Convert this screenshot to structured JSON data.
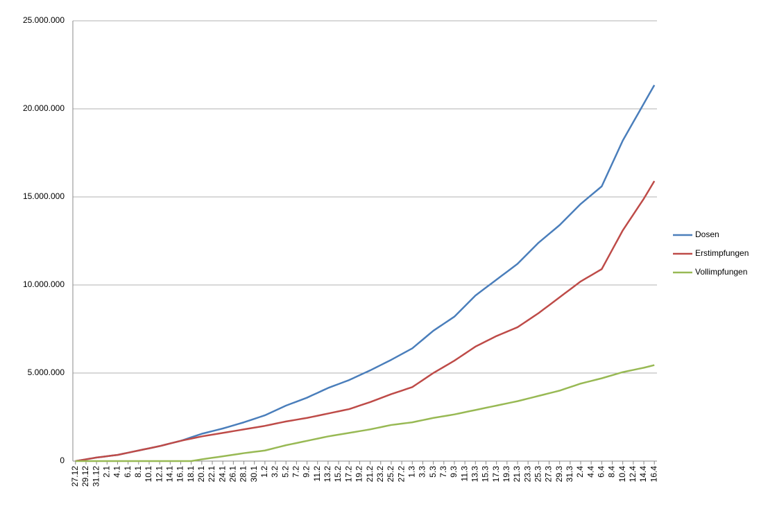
{
  "chart_data": {
    "type": "line",
    "categories": [
      "27.12",
      null,
      "29.12",
      null,
      "31.12",
      null,
      "2.1",
      null,
      "4.1",
      null,
      "6.1",
      null,
      "8.1",
      null,
      "10.1",
      null,
      "12.1",
      null,
      "14.1",
      null,
      "16.1",
      null,
      "18.1",
      null,
      "20.1",
      null,
      "22.1",
      null,
      "24.1",
      null,
      "26.1",
      null,
      "28.1",
      null,
      "30.1",
      null,
      "1.2",
      null,
      "3.2",
      null,
      "5.2",
      null,
      "7.2",
      null,
      "9.2",
      null,
      "11.2",
      null,
      "13.2",
      null,
      "15.2",
      null,
      "17.2",
      null,
      "19.2",
      null,
      "21.2",
      null,
      "23.2",
      null,
      "25.2",
      null,
      "27.2",
      null,
      "1.3",
      null,
      "3.3",
      null,
      "5.3",
      null,
      "7.3",
      null,
      "9.3",
      null,
      "11.3",
      null,
      "13.3",
      null,
      "15.3",
      null,
      "17.3",
      null,
      "19.3",
      null,
      "21.3",
      null,
      "23.3",
      null,
      "25.3",
      null,
      "27.3",
      null,
      "29.3",
      null,
      "31.3",
      null,
      "2.4",
      null,
      "4.4",
      null,
      "6.4",
      null,
      "8.4",
      null,
      "10.4",
      null,
      "12.4",
      null,
      "14.4",
      null,
      "16.4"
    ],
    "series": [
      {
        "name": "Dosen",
        "color": "#4a7ebb",
        "values": [
          0,
          50000,
          100000,
          150000,
          200000,
          238000,
          275000,
          313000,
          350000,
          413000,
          475000,
          538000,
          600000,
          663000,
          725000,
          788000,
          850000,
          925000,
          1000000,
          1075000,
          1150000,
          1250000,
          1350000,
          1450000,
          1550000,
          1625000,
          1700000,
          1775000,
          1850000,
          1938000,
          2025000,
          2113000,
          2200000,
          2300000,
          2400000,
          2500000,
          2600000,
          2738000,
          2875000,
          3013000,
          3150000,
          3263000,
          3375000,
          3488000,
          3600000,
          3738000,
          3875000,
          4013000,
          4150000,
          4263000,
          4375000,
          4488000,
          4600000,
          4738000,
          4875000,
          5013000,
          5150000,
          5300000,
          5450000,
          5600000,
          5750000,
          5913000,
          6075000,
          6238000,
          6400000,
          6650000,
          6900000,
          7150000,
          7400000,
          7600000,
          7800000,
          8000000,
          8200000,
          8500000,
          8800000,
          9100000,
          9400000,
          9625000,
          9850000,
          10075000,
          10300000,
          10525000,
          10750000,
          10975000,
          11200000,
          11500000,
          11800000,
          12100000,
          12400000,
          12650000,
          12900000,
          13150000,
          13400000,
          13700000,
          14000000,
          14300000,
          14600000,
          14850000,
          15100000,
          15350000,
          15600000,
          16250000,
          16900000,
          17550000,
          18200000,
          18725000,
          19250000,
          19775000,
          20300000,
          20825000,
          21350000
        ]
      },
      {
        "name": "Erstimpfungen",
        "color": "#be4b48",
        "values": [
          0,
          50000,
          100000,
          150000,
          200000,
          238000,
          275000,
          313000,
          350000,
          413000,
          475000,
          538000,
          600000,
          663000,
          725000,
          788000,
          850000,
          925000,
          1000000,
          1075000,
          1150000,
          1213000,
          1275000,
          1338000,
          1400000,
          1450000,
          1500000,
          1550000,
          1600000,
          1650000,
          1700000,
          1750000,
          1800000,
          1850000,
          1900000,
          1950000,
          2000000,
          2063000,
          2125000,
          2188000,
          2250000,
          2300000,
          2350000,
          2400000,
          2450000,
          2513000,
          2575000,
          2638000,
          2700000,
          2763000,
          2825000,
          2888000,
          2950000,
          3050000,
          3150000,
          3250000,
          3350000,
          3463000,
          3575000,
          3688000,
          3800000,
          3900000,
          4000000,
          4100000,
          4200000,
          4400000,
          4600000,
          4800000,
          5000000,
          5175000,
          5350000,
          5525000,
          5700000,
          5900000,
          6100000,
          6300000,
          6500000,
          6650000,
          6800000,
          6950000,
          7100000,
          7225000,
          7350000,
          7475000,
          7600000,
          7800000,
          8000000,
          8200000,
          8400000,
          8625000,
          8850000,
          9075000,
          9300000,
          9525000,
          9750000,
          9975000,
          10200000,
          10375000,
          10550000,
          10725000,
          10900000,
          11450000,
          12000000,
          12550000,
          13100000,
          13550000,
          14000000,
          14450000,
          14900000,
          15400000,
          15900000
        ]
      },
      {
        "name": "Vollimpfungen",
        "color": "#98b954",
        "values": [
          0,
          0,
          0,
          0,
          0,
          0,
          0,
          0,
          0,
          0,
          0,
          0,
          0,
          0,
          0,
          0,
          0,
          0,
          0,
          0,
          0,
          0,
          0,
          50000,
          100000,
          143000,
          185000,
          228000,
          270000,
          315000,
          360000,
          405000,
          450000,
          488000,
          525000,
          563000,
          600000,
          675000,
          750000,
          825000,
          900000,
          963000,
          1025000,
          1088000,
          1150000,
          1213000,
          1275000,
          1338000,
          1400000,
          1450000,
          1500000,
          1550000,
          1600000,
          1650000,
          1700000,
          1750000,
          1800000,
          1863000,
          1925000,
          1988000,
          2050000,
          2088000,
          2125000,
          2163000,
          2200000,
          2263000,
          2325000,
          2388000,
          2450000,
          2500000,
          2550000,
          2600000,
          2650000,
          2713000,
          2775000,
          2838000,
          2900000,
          2963000,
          3025000,
          3088000,
          3150000,
          3213000,
          3275000,
          3338000,
          3400000,
          3475000,
          3550000,
          3625000,
          3700000,
          3775000,
          3850000,
          3925000,
          4000000,
          4100000,
          4200000,
          4300000,
          4400000,
          4475000,
          4550000,
          4625000,
          4700000,
          4788000,
          4875000,
          4963000,
          5050000,
          5113000,
          5175000,
          5238000,
          5300000,
          5375000,
          5450000
        ]
      }
    ],
    "ylim": [
      0,
      25000000
    ],
    "yticks": [
      0,
      {
        "value": 5000000,
        "label": "5.000.000"
      },
      {
        "value": 10000000,
        "label": "10.000.000"
      },
      {
        "value": 15000000,
        "label": "15.000.000"
      },
      {
        "value": 20000000,
        "label": "20.000.000"
      },
      {
        "value": 25000000,
        "label": "25.000.000"
      }
    ],
    "grid": true,
    "legend": "right"
  }
}
